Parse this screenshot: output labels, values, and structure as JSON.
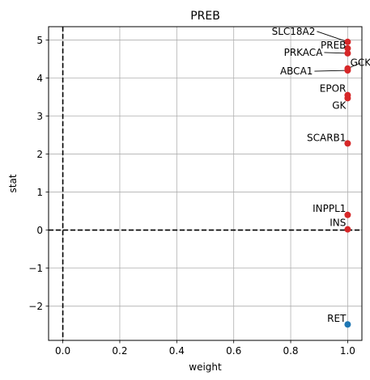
{
  "chart_data": {
    "type": "scatter",
    "title": "PREB",
    "xlabel": "weight",
    "ylabel": "stat",
    "xlim": [
      -0.05,
      1.05
    ],
    "ylim": [
      -2.9,
      5.35
    ],
    "xticks": [
      0.0,
      0.2,
      0.4,
      0.6,
      0.8,
      1.0
    ],
    "xtick_labels": [
      "0.0",
      "0.2",
      "0.4",
      "0.6",
      "0.8",
      "1.0"
    ],
    "yticks": [
      -2,
      -1,
      0,
      1,
      2,
      3,
      4,
      5
    ],
    "ytick_labels": [
      "−2",
      "−1",
      "0",
      "1",
      "2",
      "3",
      "4",
      "5"
    ],
    "grid": true,
    "reference_lines": [
      {
        "orientation": "vertical",
        "value": 0,
        "style": "dashed",
        "color": "#000000"
      },
      {
        "orientation": "horizontal",
        "value": 0,
        "style": "dashed",
        "color": "#000000"
      }
    ],
    "colors": {
      "positive": "#d62728",
      "negative": "#1f77b4"
    },
    "points": [
      {
        "label": "SLC18A2",
        "x": 1.0,
        "y": 4.95,
        "color": "#d62728"
      },
      {
        "label": "PREB",
        "x": 1.0,
        "y": 4.78,
        "color": "#d62728"
      },
      {
        "label": "PRKACA",
        "x": 1.0,
        "y": 4.65,
        "color": "#d62728"
      },
      {
        "label": "GCK",
        "x": 1.0,
        "y": 4.25,
        "color": "#d62728"
      },
      {
        "label": "ABCA1",
        "x": 1.0,
        "y": 4.2,
        "color": "#d62728"
      },
      {
        "label": "EPOR",
        "x": 1.0,
        "y": 3.55,
        "color": "#d62728"
      },
      {
        "label": "GK",
        "x": 1.0,
        "y": 3.47,
        "color": "#d62728"
      },
      {
        "label": "SCARB1",
        "x": 1.0,
        "y": 2.28,
        "color": "#d62728"
      },
      {
        "label": "INPPL1",
        "x": 1.0,
        "y": 0.4,
        "color": "#d62728"
      },
      {
        "label": "INS",
        "x": 1.0,
        "y": 0.02,
        "color": "#d62728"
      },
      {
        "label": "RET",
        "x": 1.0,
        "y": -2.48,
        "color": "#1f77b4"
      }
    ]
  }
}
